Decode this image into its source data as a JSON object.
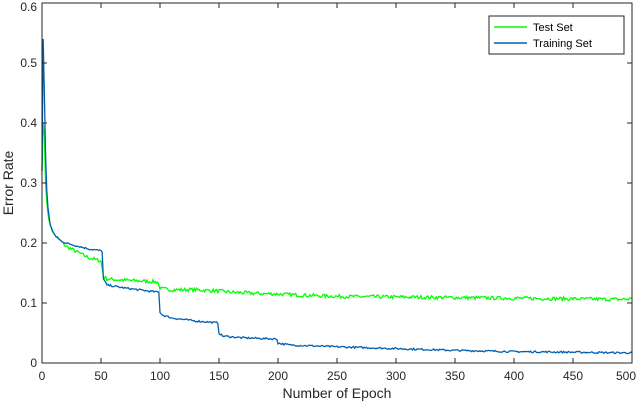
{
  "chart_data": {
    "type": "line",
    "xlabel": "Number of Epoch",
    "ylabel": "Error Rate",
    "xlim": [
      0,
      500
    ],
    "ylim": [
      0,
      0.6
    ],
    "xticks": [
      "0",
      "50",
      "100",
      "150",
      "200",
      "250",
      "300",
      "350",
      "400",
      "450",
      "500"
    ],
    "yticks": [
      "0",
      "0.1",
      "0.2",
      "0.3",
      "0.4",
      "0.5",
      "0.6"
    ],
    "grid": false,
    "legend_position": "top-right",
    "series": [
      {
        "name": "Test Set",
        "color": "#00ff00",
        "x": [
          0,
          1,
          2,
          3,
          4,
          5,
          7,
          10,
          15,
          20,
          30,
          40,
          50,
          52,
          55,
          70,
          90,
          98,
          100,
          101,
          110,
          130,
          150,
          160,
          180,
          200,
          220,
          250,
          300,
          350,
          400,
          450,
          490,
          500
        ],
        "y": [
          0.32,
          0.4,
          0.38,
          0.3,
          0.27,
          0.25,
          0.23,
          0.215,
          0.205,
          0.195,
          0.185,
          0.175,
          0.17,
          0.145,
          0.14,
          0.138,
          0.136,
          0.135,
          0.125,
          0.124,
          0.122,
          0.122,
          0.12,
          0.118,
          0.116,
          0.115,
          0.113,
          0.111,
          0.11,
          0.109,
          0.108,
          0.107,
          0.106,
          0.107
        ]
      },
      {
        "name": "Training Set",
        "color": "#0060b0",
        "x": [
          0,
          1,
          2,
          3,
          4,
          5,
          7,
          10,
          15,
          20,
          30,
          40,
          50,
          51,
          52,
          55,
          70,
          90,
          99,
          100,
          102,
          110,
          130,
          149,
          150,
          153,
          170,
          199,
          200,
          210,
          250,
          300,
          350,
          400,
          450,
          490,
          500
        ],
        "y": [
          0.32,
          0.54,
          0.45,
          0.35,
          0.29,
          0.26,
          0.23,
          0.215,
          0.205,
          0.2,
          0.195,
          0.19,
          0.187,
          0.186,
          0.14,
          0.13,
          0.125,
          0.12,
          0.118,
          0.085,
          0.08,
          0.075,
          0.07,
          0.067,
          0.05,
          0.045,
          0.042,
          0.04,
          0.033,
          0.03,
          0.027,
          0.024,
          0.021,
          0.019,
          0.018,
          0.017,
          0.017
        ]
      }
    ]
  }
}
